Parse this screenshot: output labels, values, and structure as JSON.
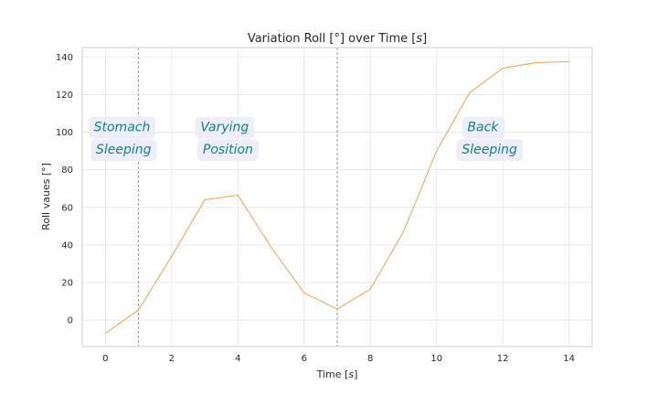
{
  "chart_data": {
    "type": "line",
    "title": "Variation Roll [°] over Time [s]",
    "title_parts": [
      "Variation Roll [°] over Time [",
      "s",
      "]"
    ],
    "xlabel_parts": [
      "Time [",
      "s",
      "]"
    ],
    "ylabel": "Roll vaues [°]",
    "xlim": [
      -0.7,
      14.7
    ],
    "ylim": [
      -14,
      145
    ],
    "x_ticks": [
      0,
      2,
      4,
      6,
      8,
      10,
      12,
      14
    ],
    "y_ticks": [
      0,
      20,
      40,
      60,
      80,
      100,
      120,
      140
    ],
    "grid": true,
    "series": [
      {
        "x": [
          0,
          1,
          2,
          3,
          4,
          5,
          6,
          7,
          8,
          9,
          10,
          11,
          12,
          13,
          14
        ],
        "y": [
          -7,
          5.5,
          34,
          64,
          66.5,
          39,
          14.5,
          6,
          16.5,
          47,
          90,
          121,
          134,
          137,
          137.5
        ],
        "color": "#f5a04a"
      }
    ],
    "vlines": [
      1,
      7
    ],
    "vline_color": "#8c8c8c",
    "annotations": [
      {
        "text": "Stomach",
        "x": 0.5,
        "y": 100.5
      },
      {
        "text": "Sleeping",
        "x": 0.55,
        "y": 88.5
      },
      {
        "text": "Varying",
        "x": 3.6,
        "y": 100.5
      },
      {
        "text": "Position",
        "x": 3.7,
        "y": 88.5
      },
      {
        "text": "Back",
        "x": 11.4,
        "y": 100.5
      },
      {
        "text": "Sleeping",
        "x": 11.6,
        "y": 88.5
      }
    ],
    "annotation_color": "#11808a",
    "annotation_box_color": "#eeeef8"
  }
}
